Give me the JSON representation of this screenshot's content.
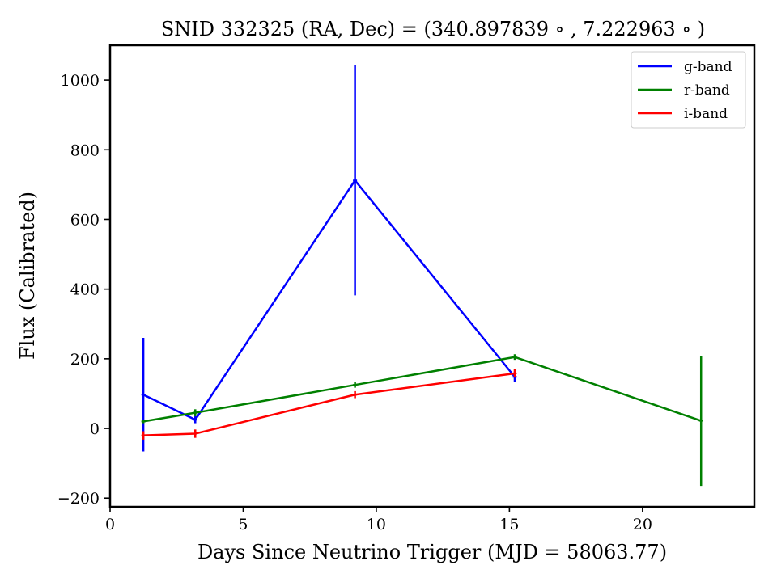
{
  "chart_data": {
    "type": "line",
    "title": "SNID 332325   (RA, Dec) = (340.897839$^\\circ$, 7.222963$^\\circ$)",
    "title_display": "SNID 332325   (RA, Dec) = (340.897839 ∘ , 7.222963 ∘ )",
    "xlabel": "Days Since Neutrino Trigger (MJD = 58063.77)",
    "ylabel": "Flux (Calibrated)",
    "xlim": [
      0,
      24.2
    ],
    "ylim": [
      -225,
      1100
    ],
    "xticks": [
      0,
      5,
      10,
      15,
      20
    ],
    "xtick_labels": [
      "0",
      "5",
      "10",
      "15",
      "20"
    ],
    "yticks": [
      -200,
      0,
      200,
      400,
      600,
      800,
      1000
    ],
    "ytick_labels": [
      "−200",
      "0",
      "200",
      "400",
      "600",
      "800",
      "1000"
    ],
    "grid": false,
    "legend_position": "top-right",
    "series": [
      {
        "name": "g-band",
        "color": "#0000ff",
        "x": [
          1.25,
          3.2,
          9.2,
          15.2
        ],
        "y": [
          97,
          25,
          712,
          148
        ],
        "yerr": [
          163,
          10,
          330,
          15
        ]
      },
      {
        "name": "r-band",
        "color": "#008000",
        "x": [
          1.25,
          3.2,
          9.2,
          15.2,
          22.2
        ],
        "y": [
          20,
          45,
          125,
          205,
          22
        ],
        "yerr": [
          5,
          10,
          8,
          8,
          187
        ]
      },
      {
        "name": "i-band",
        "color": "#ff0000",
        "x": [
          1.25,
          3.2,
          9.2,
          15.2
        ],
        "y": [
          -20,
          -15,
          97,
          158
        ],
        "yerr": [
          12,
          12,
          10,
          12
        ]
      }
    ]
  }
}
